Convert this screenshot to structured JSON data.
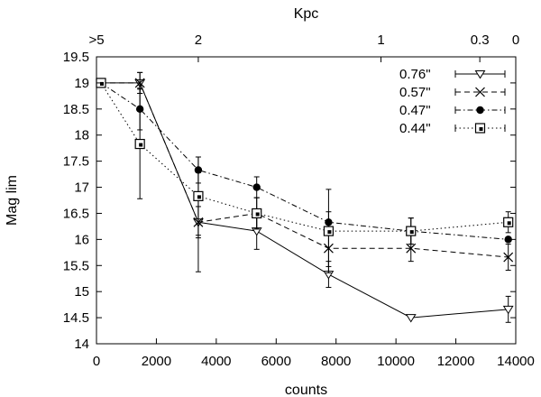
{
  "chart_data": {
    "type": "line",
    "title": "",
    "xlabel": "counts",
    "ylabel": "Mag lim",
    "x2label": "Kpc",
    "xlim": [
      0,
      14000
    ],
    "ylim": [
      14,
      19.5
    ],
    "xticks": [
      0,
      2000,
      4000,
      6000,
      8000,
      10000,
      12000,
      14000
    ],
    "xtick_labels": [
      "0",
      "2000",
      "4000",
      "6000",
      "8000",
      "10000",
      "12000",
      "14000"
    ],
    "yticks": [
      14,
      14.5,
      15,
      15.5,
      16,
      16.5,
      17,
      17.5,
      18,
      18.5,
      19,
      19.5
    ],
    "ytick_labels": [
      "14",
      "14.5",
      "15",
      "15.5",
      "16",
      "16.5",
      "17",
      "17.5",
      "18",
      "18.5",
      "19",
      "19.5"
    ],
    "x2ticks": [
      {
        "x": 0,
        "label": ">5"
      },
      {
        "x": 3400,
        "label": "2"
      },
      {
        "x": 9500,
        "label": "1"
      },
      {
        "x": 12800,
        "label": "0.3"
      },
      {
        "x": 14000,
        "label": "0"
      }
    ],
    "grid": false,
    "legend_position": "top-right",
    "series": [
      {
        "name": "0.76\"",
        "marker": "triangle-down",
        "linestyle": "solid",
        "points": [
          {
            "x": 150,
            "y": 19.0,
            "err": 0.0
          },
          {
            "x": 1450,
            "y": 19.0,
            "err": 0.2
          },
          {
            "x": 3400,
            "y": 16.33,
            "err": 0.3
          },
          {
            "x": 5350,
            "y": 16.16,
            "err": 0.35
          },
          {
            "x": 7750,
            "y": 15.33,
            "err": 0.25
          },
          {
            "x": 10500,
            "y": 14.5,
            "err": 0.0
          },
          {
            "x": 13750,
            "y": 14.66,
            "err": 0.25
          }
        ]
      },
      {
        "name": "0.57\"",
        "marker": "x",
        "linestyle": "dashed",
        "points": [
          {
            "x": 150,
            "y": 19.0,
            "err": 0.0
          },
          {
            "x": 1450,
            "y": 19.0,
            "err": 0.2
          },
          {
            "x": 3400,
            "y": 16.33,
            "err": 0.95
          },
          {
            "x": 5350,
            "y": 16.5,
            "err": 0.3
          },
          {
            "x": 7750,
            "y": 15.83,
            "err": 0.35
          },
          {
            "x": 10500,
            "y": 15.83,
            "err": 0.25
          },
          {
            "x": 13750,
            "y": 15.66,
            "err": 0.25
          }
        ]
      },
      {
        "name": "0.47\"",
        "marker": "circle",
        "linestyle": "dash-dot",
        "points": [
          {
            "x": 150,
            "y": 19.0,
            "err": 0.0
          },
          {
            "x": 1450,
            "y": 18.5,
            "err": 0.4
          },
          {
            "x": 3400,
            "y": 17.33,
            "err": 0.25
          },
          {
            "x": 5350,
            "y": 17.0,
            "err": 0.2
          },
          {
            "x": 7750,
            "y": 16.33,
            "err": 0.2
          },
          {
            "x": 10500,
            "y": 16.16,
            "err": 0.25
          },
          {
            "x": 13750,
            "y": 16.0,
            "err": 0.0
          }
        ]
      },
      {
        "name": "0.44\"",
        "marker": "square-partial",
        "linestyle": "dotted",
        "points": [
          {
            "x": 150,
            "y": 19.0,
            "err": 0.0
          },
          {
            "x": 1450,
            "y": 17.83,
            "err": 1.05
          },
          {
            "x": 3400,
            "y": 16.83,
            "err": 0.75
          },
          {
            "x": 5350,
            "y": 16.5,
            "err": 0.3
          },
          {
            "x": 7750,
            "y": 16.16,
            "err": 0.8
          },
          {
            "x": 10500,
            "y": 16.16,
            "err": 0.25
          },
          {
            "x": 13750,
            "y": 16.33,
            "err": 0.2
          }
        ]
      }
    ]
  }
}
